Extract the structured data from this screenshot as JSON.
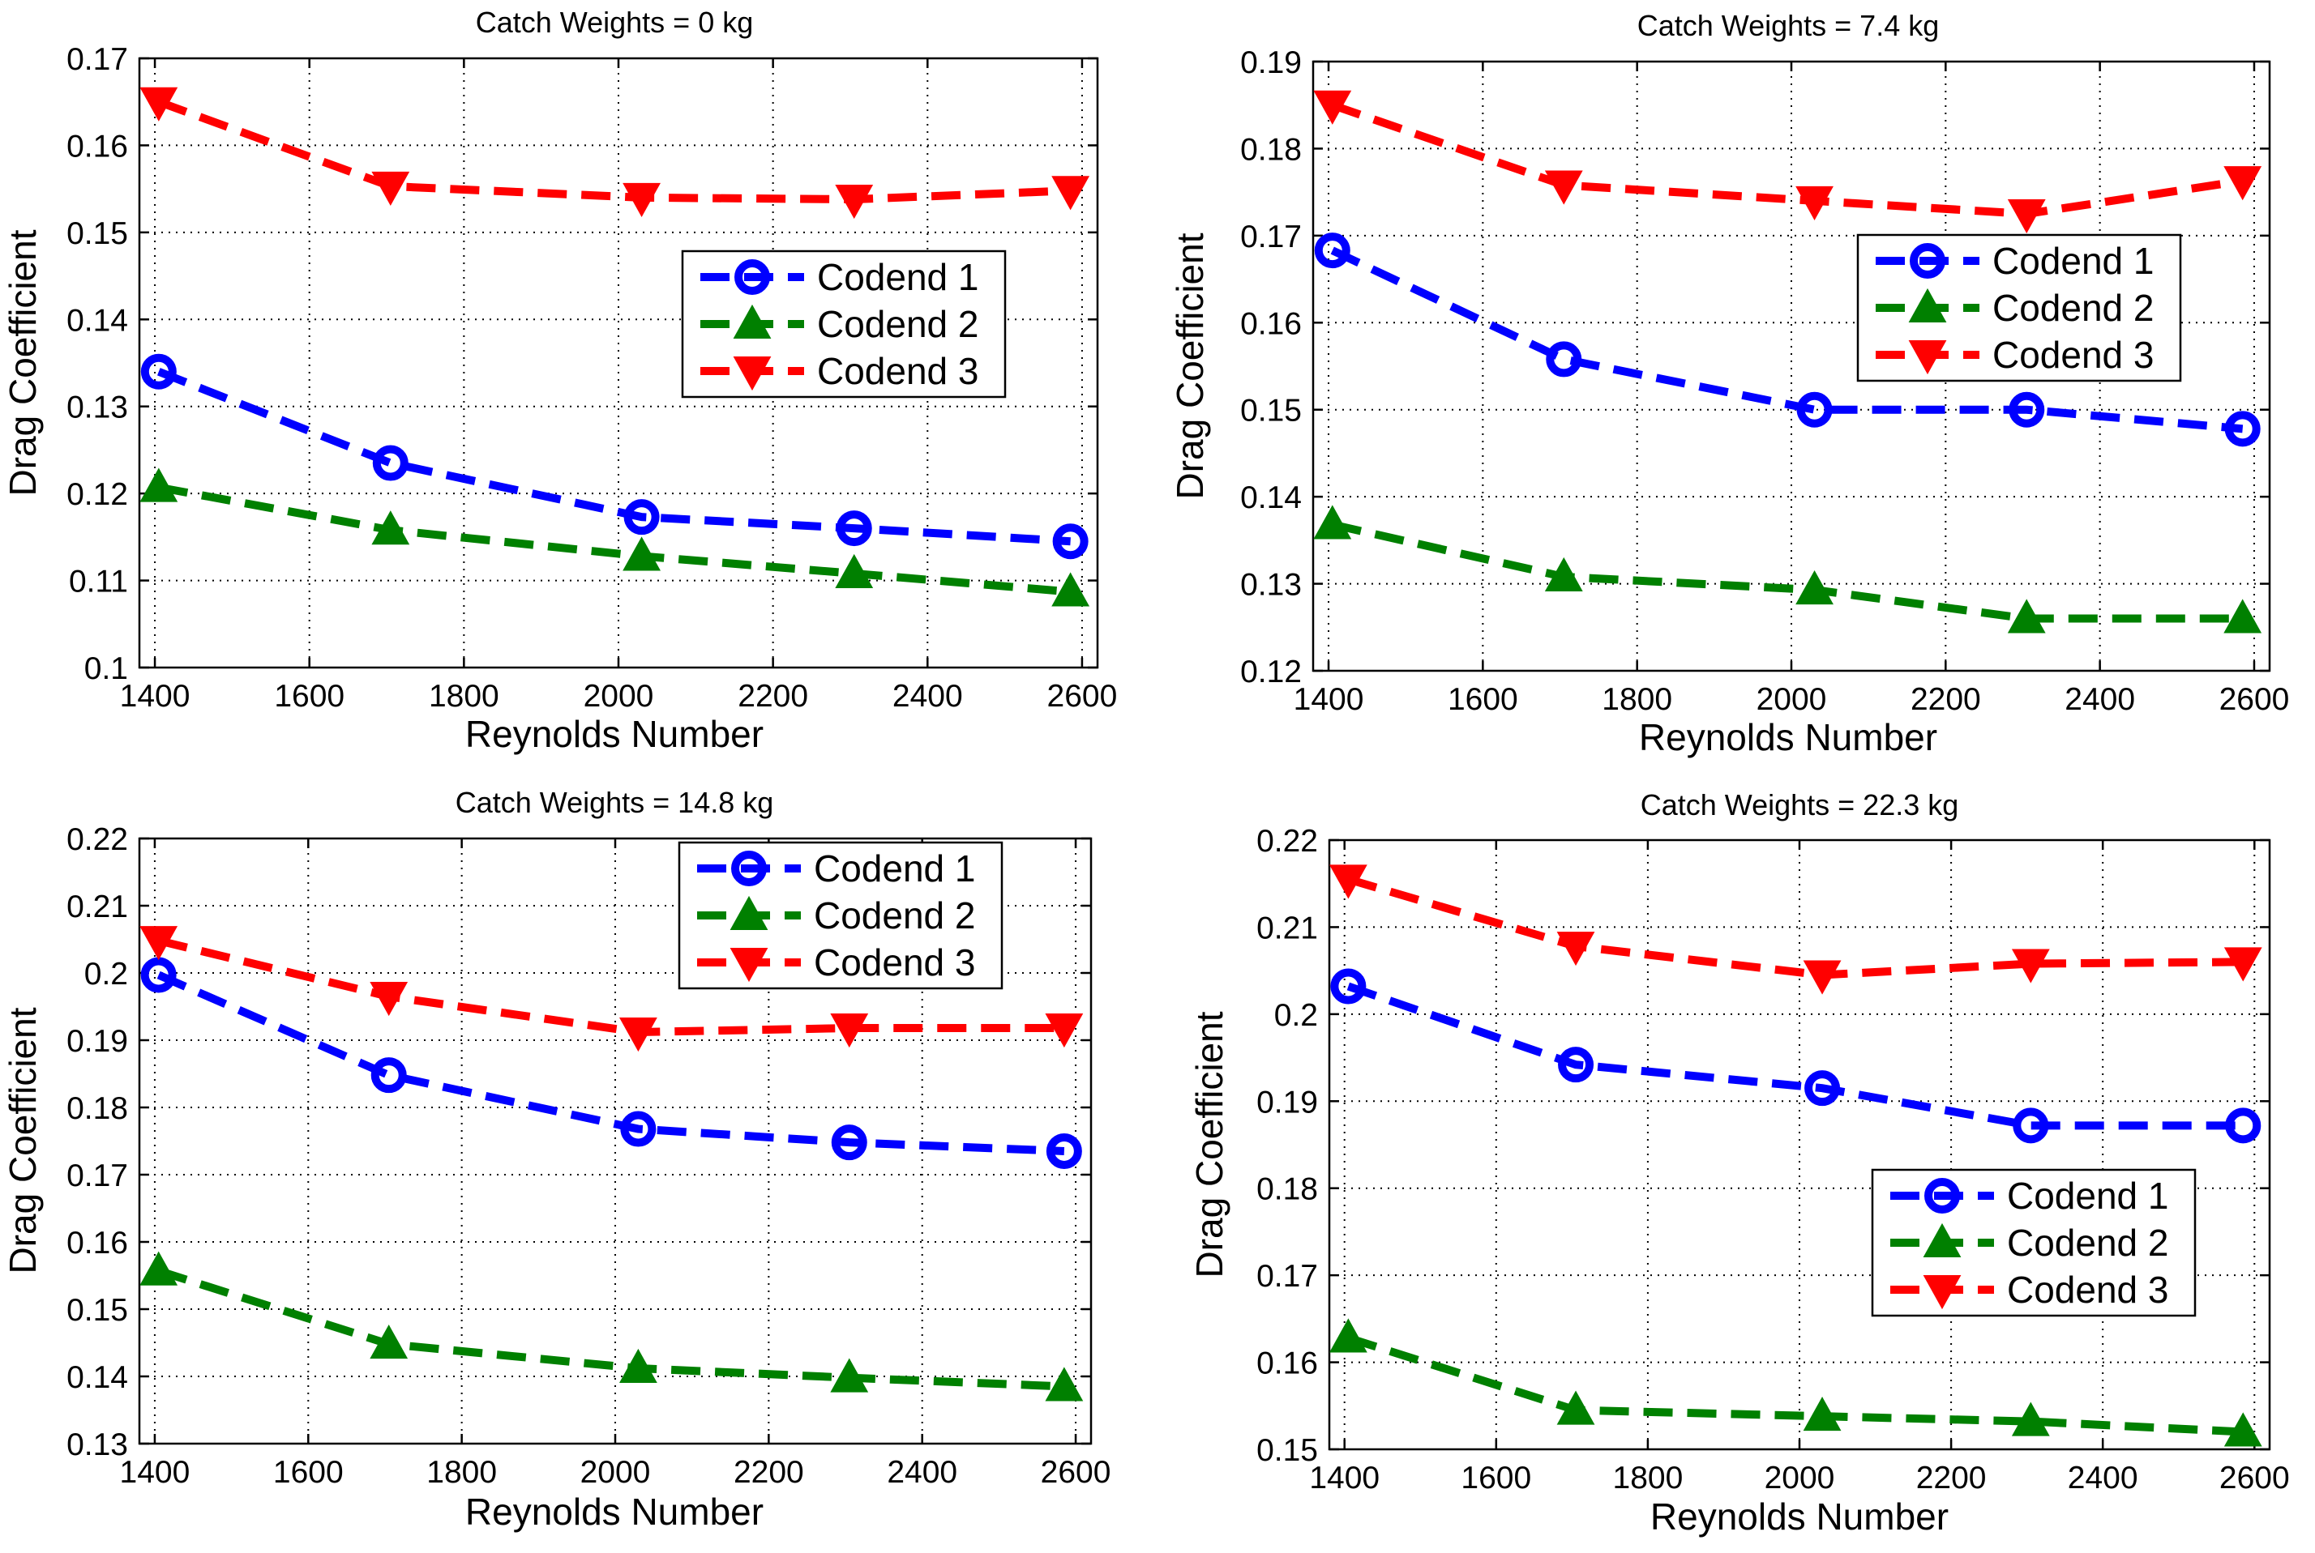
{
  "chart_data": [
    {
      "type": "line",
      "title": "Catch Weights = 0 kg",
      "xlabel": "Reynolds Number",
      "ylabel": "Drag Coefficient",
      "x": [
        1405,
        1705,
        2030,
        2305,
        2585
      ],
      "xlim": [
        1380,
        2620
      ],
      "ylim": [
        0.1,
        0.17
      ],
      "xticks": [
        1400,
        1600,
        1800,
        2000,
        2200,
        2400,
        2600
      ],
      "yticks": [
        0.1,
        0.11,
        0.12,
        0.13,
        0.14,
        0.15,
        0.16,
        0.17
      ],
      "ytick_labels": [
        "0.1",
        "0.11",
        "0.12",
        "0.13",
        "0.14",
        "0.15",
        "0.16",
        "0.17"
      ],
      "grid": true,
      "legend_position": "center-right",
      "series": [
        {
          "name": "Codend 1",
          "color": "#0000ff",
          "marker": "circle",
          "values": [
            0.134,
            0.1235,
            0.1173,
            0.116,
            0.1145
          ]
        },
        {
          "name": "Codend 2",
          "color": "#008000",
          "marker": "triangle-up",
          "values": [
            0.1207,
            0.1158,
            0.1128,
            0.1108,
            0.1087
          ]
        },
        {
          "name": "Codend 3",
          "color": "#ff0000",
          "marker": "triangle-down",
          "values": [
            0.165,
            0.1553,
            0.154,
            0.1538,
            0.1548
          ]
        }
      ]
    },
    {
      "type": "line",
      "title": "Catch Weights = 7.4 kg",
      "xlabel": "Reynolds Number",
      "ylabel": "Drag Coefficient",
      "x": [
        1405,
        1705,
        2030,
        2305,
        2585
      ],
      "xlim": [
        1380,
        2620
      ],
      "ylim": [
        0.12,
        0.19
      ],
      "xticks": [
        1400,
        1600,
        1800,
        2000,
        2200,
        2400,
        2600
      ],
      "yticks": [
        0.12,
        0.13,
        0.14,
        0.15,
        0.16,
        0.17,
        0.18,
        0.19
      ],
      "ytick_labels": [
        "0.12",
        "0.13",
        "0.14",
        "0.15",
        "0.16",
        "0.17",
        "0.18",
        "0.19"
      ],
      "grid": true,
      "legend_position": "top-right",
      "series": [
        {
          "name": "Codend 1",
          "color": "#0000ff",
          "marker": "circle",
          "values": [
            0.1683,
            0.1558,
            0.15,
            0.15,
            0.1478
          ]
        },
        {
          "name": "Codend 2",
          "color": "#008000",
          "marker": "triangle-up",
          "values": [
            0.1368,
            0.1308,
            0.1293,
            0.126,
            0.126
          ]
        },
        {
          "name": "Codend 3",
          "color": "#ff0000",
          "marker": "triangle-down",
          "values": [
            0.185,
            0.1758,
            0.174,
            0.1725,
            0.1763
          ]
        }
      ]
    },
    {
      "type": "line",
      "title": "Catch Weights = 14.8 kg",
      "xlabel": "Reynolds Number",
      "ylabel": "Drag Coefficient",
      "x": [
        1405,
        1705,
        2030,
        2305,
        2585
      ],
      "xlim": [
        1380,
        2620
      ],
      "ylim": [
        0.13,
        0.22
      ],
      "xticks": [
        1400,
        1600,
        1800,
        2000,
        2200,
        2400,
        2600
      ],
      "yticks": [
        0.13,
        0.14,
        0.15,
        0.16,
        0.17,
        0.18,
        0.19,
        0.2,
        0.21,
        0.22
      ],
      "ytick_labels": [
        "0.13",
        "0.14",
        "0.15",
        "0.16",
        "0.17",
        "0.18",
        "0.19",
        "0.2",
        "0.21",
        "0.22"
      ],
      "grid": true,
      "legend_position": "top-right",
      "series": [
        {
          "name": "Codend 1",
          "color": "#0000ff",
          "marker": "circle",
          "values": [
            0.1997,
            0.1848,
            0.1768,
            0.1748,
            0.1735
          ]
        },
        {
          "name": "Codend 2",
          "color": "#008000",
          "marker": "triangle-up",
          "values": [
            0.1557,
            0.1448,
            0.1412,
            0.1398,
            0.1385
          ]
        },
        {
          "name": "Codend 3",
          "color": "#ff0000",
          "marker": "triangle-down",
          "values": [
            0.2048,
            0.1965,
            0.1912,
            0.1918,
            0.1918
          ]
        }
      ]
    },
    {
      "type": "line",
      "title": "Catch Weights = 22.3 kg",
      "xlabel": "Reynolds Number",
      "ylabel": "Drag Coefficient",
      "x": [
        1405,
        1705,
        2030,
        2305,
        2585
      ],
      "xlim": [
        1380,
        2620
      ],
      "ylim": [
        0.15,
        0.22
      ],
      "xticks": [
        1400,
        1600,
        1800,
        2000,
        2200,
        2400,
        2600
      ],
      "yticks": [
        0.15,
        0.16,
        0.17,
        0.18,
        0.19,
        0.2,
        0.21,
        0.22
      ],
      "ytick_labels": [
        "0.15",
        "0.16",
        "0.17",
        "0.18",
        "0.19",
        "0.2",
        "0.21",
        "0.22"
      ],
      "grid": true,
      "legend_position": "bottom-right",
      "series": [
        {
          "name": "Codend 1",
          "color": "#0000ff",
          "marker": "circle",
          "values": [
            0.2032,
            0.1942,
            0.1915,
            0.1872,
            0.1872
          ]
        },
        {
          "name": "Codend 2",
          "color": "#008000",
          "marker": "triangle-up",
          "values": [
            0.1628,
            0.1545,
            0.1538,
            0.1532,
            0.152
          ]
        },
        {
          "name": "Codend 3",
          "color": "#ff0000",
          "marker": "triangle-down",
          "values": [
            0.2155,
            0.2078,
            0.2045,
            0.2058,
            0.206
          ]
        }
      ]
    }
  ]
}
